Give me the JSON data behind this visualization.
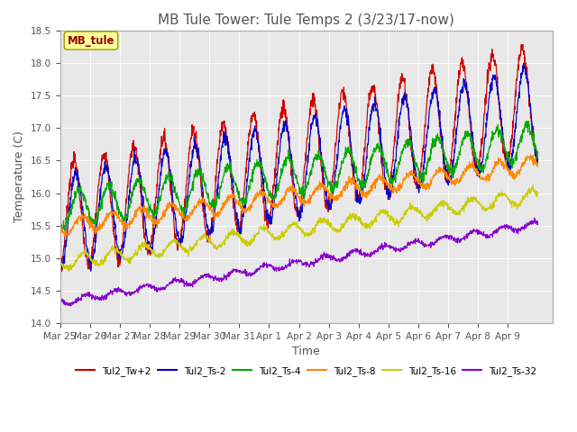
{
  "title": "MB Tule Tower: Tule Temps 2 (3/23/17-now)",
  "xlabel": "Time",
  "ylabel": "Temperature (C)",
  "ylim": [
    14.0,
    18.5
  ],
  "yticks": [
    14.0,
    14.5,
    15.0,
    15.5,
    16.0,
    16.5,
    17.0,
    17.5,
    18.0,
    18.5
  ],
  "legend_label": "MB_tule",
  "series_labels": [
    "Tul2_Tw+2",
    "Tul2_Ts-2",
    "Tul2_Ts-4",
    "Tul2_Ts-8",
    "Tul2_Ts-16",
    "Tul2_Ts-32"
  ],
  "series_colors": [
    "#cc0000",
    "#0000cc",
    "#00aa00",
    "#ff8800",
    "#cccc00",
    "#8800cc"
  ],
  "background_color": "#ffffff",
  "plot_bg_color": "#e8e8e8",
  "title_fontsize": 11,
  "axis_fontsize": 9,
  "xtick_labels": [
    "Mar 25",
    "Mar 26",
    "Mar 27",
    "Mar 28",
    "Mar 29",
    "Mar 30",
    "Mar 31",
    "Apr 1",
    "Apr 2",
    "Apr 3",
    "Apr 4",
    "Apr 5",
    "Apr 6",
    "Apr 7",
    "Apr 8",
    "Apr 9"
  ],
  "n_days": 16,
  "series_params": [
    {
      "base": 15.6,
      "amp": 0.85,
      "phase": 0.22,
      "trend": 0.115,
      "noise": 0.06
    },
    {
      "base": 15.55,
      "amp": 0.72,
      "phase": 0.28,
      "trend": 0.105,
      "noise": 0.05
    },
    {
      "base": 15.75,
      "amp": 0.28,
      "phase": 0.38,
      "trend": 0.065,
      "noise": 0.04
    },
    {
      "base": 15.48,
      "amp": 0.12,
      "phase": 0.48,
      "trend": 0.06,
      "noise": 0.03
    },
    {
      "base": 14.92,
      "amp": 0.1,
      "phase": 0.55,
      "trend": 0.065,
      "noise": 0.025
    },
    {
      "base": 14.32,
      "amp": 0.05,
      "phase": 0.62,
      "trend": 0.075,
      "noise": 0.02
    }
  ]
}
